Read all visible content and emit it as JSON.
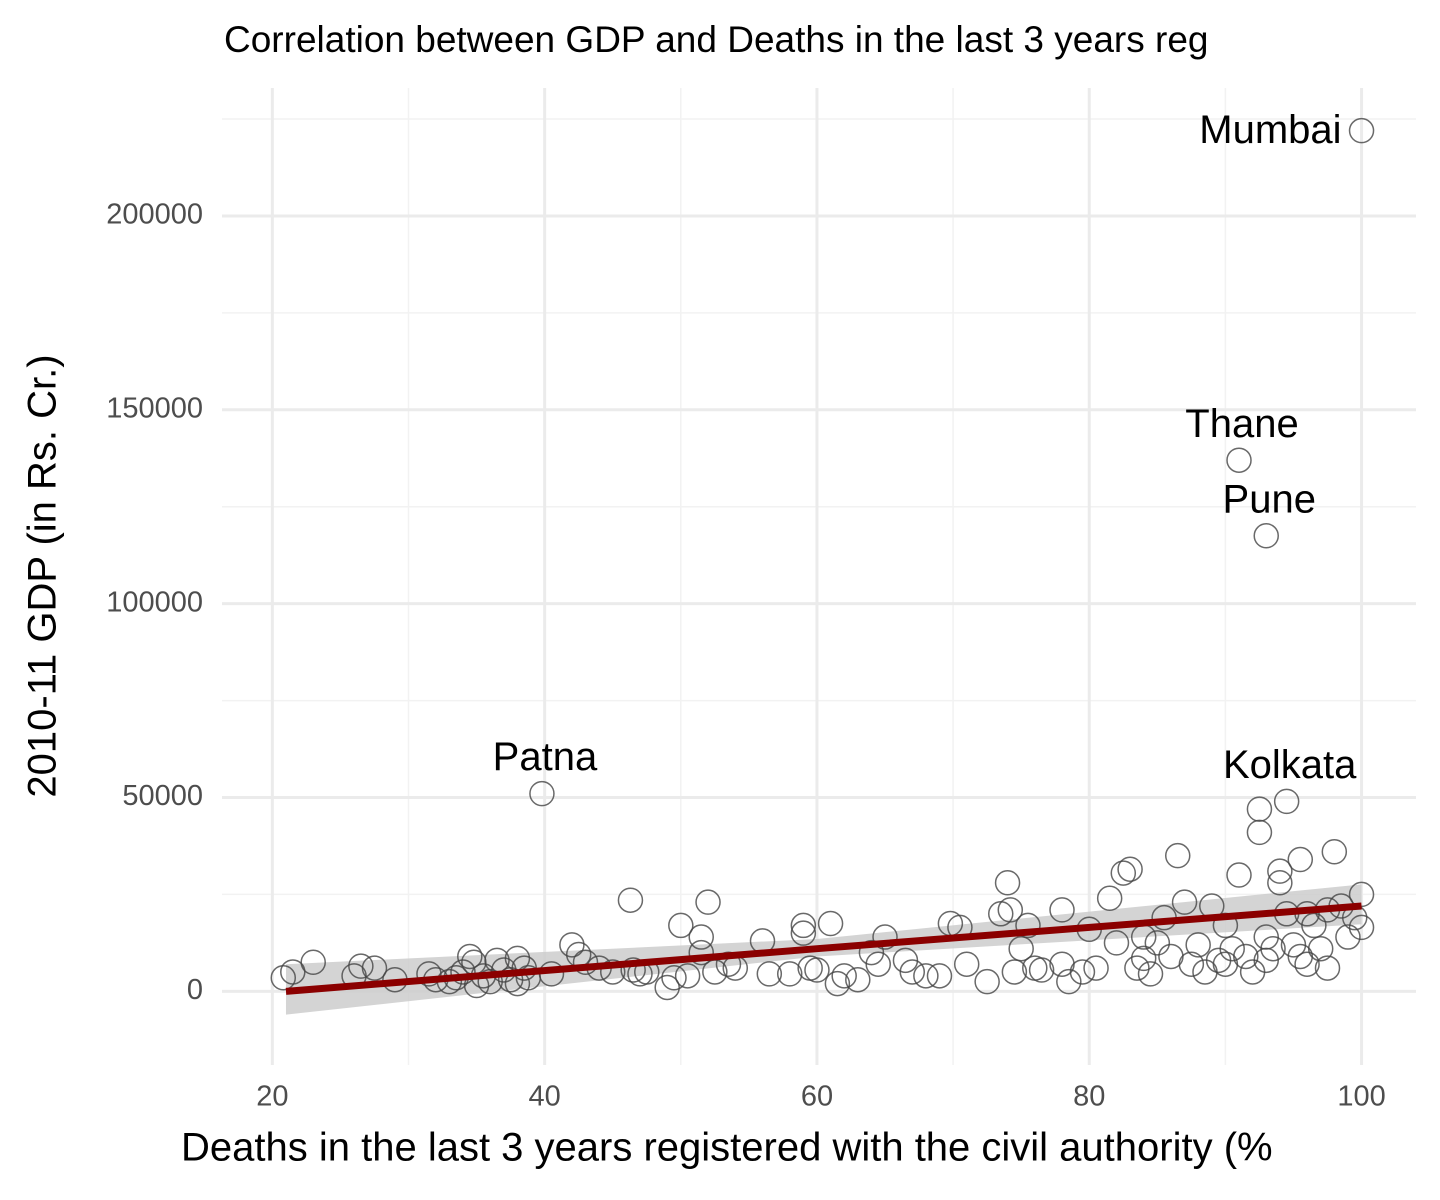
{
  "chart_data": {
    "type": "scatter",
    "title": "Correlation between GDP and Deaths in the last 3 years reg",
    "x_label": "Deaths in the last 3 years registered with the civil authority (%",
    "y_label": "2010-11 GDP (in Rs. Cr.)",
    "xlim": [
      16.3,
      104
    ],
    "ylim": [
      -19000,
      233000
    ],
    "xticks": [
      20,
      40,
      60,
      80,
      100
    ],
    "yticks": [
      0,
      50000,
      100000,
      150000,
      200000
    ],
    "x_minor_ticks": [
      30,
      50,
      70,
      90
    ],
    "y_minor_ticks": [
      25000,
      75000,
      125000,
      175000,
      225000
    ],
    "grid": true,
    "point_color": "#444444",
    "x": [
      20.8,
      21.5,
      23,
      26,
      26.5,
      27.5,
      29,
      31.5,
      32,
      33,
      33.5,
      34,
      34.5,
      34.8,
      35,
      35.5,
      36,
      36.5,
      37,
      37.5,
      38,
      38.5,
      38.8,
      38,
      40.5,
      42,
      42.5,
      43,
      44,
      45,
      46.3,
      46.5,
      47,
      47.5,
      49,
      49.5,
      50,
      50.5,
      51.5,
      51.5,
      52,
      52.5,
      53.5,
      54,
      56,
      56.5,
      58,
      59,
      59,
      59.5,
      60,
      61,
      61.5,
      62,
      63,
      64,
      64.5,
      65,
      66.5,
      67,
      68,
      69,
      69.8,
      70.5,
      71,
      72.5,
      73.5,
      74,
      74.2,
      74.5,
      75,
      75.5,
      76,
      76.5,
      78,
      78,
      78.5,
      79.5,
      80,
      80.5,
      81.5,
      82,
      82.5,
      83,
      83.5,
      84,
      84.5,
      84,
      85,
      85.5,
      86,
      86.5,
      87,
      87.5,
      88,
      88.5,
      89,
      89.5,
      90,
      90,
      90.5,
      91,
      91.5,
      92,
      92.5,
      92.5,
      93,
      93,
      93.5,
      94,
      94,
      94.5,
      94.5,
      95,
      95.5,
      95.5,
      96,
      96,
      96.5,
      97,
      97.5,
      97.5,
      98,
      98.5,
      99,
      99.5,
      100,
      100,
      100,
      91,
      93,
      39.8
    ],
    "y": [
      3500,
      5000,
      7500,
      4000,
      6500,
      6000,
      3000,
      4500,
      3000,
      2500,
      3500,
      5000,
      9000,
      7500,
      1500,
      4000,
      2500,
      8000,
      5500,
      3000,
      8500,
      6000,
      3500,
      2000,
      4500,
      12000,
      9500,
      7500,
      6000,
      5000,
      23500,
      5500,
      4500,
      5000,
      1000,
      3500,
      17000,
      4000,
      14000,
      10000,
      23000,
      5000,
      7000,
      6000,
      13000,
      4500,
      4500,
      17000,
      15000,
      6000,
      5500,
      17500,
      2000,
      4000,
      3000,
      10000,
      7000,
      14000,
      8000,
      5000,
      4000,
      4000,
      17500,
      16500,
      7000,
      2500,
      20000,
      28000,
      21000,
      5000,
      11000,
      17000,
      6000,
      5500,
      21000,
      7000,
      2500,
      5000,
      16000,
      6000,
      24000,
      12500,
      30500,
      31500,
      6000,
      8500,
      4500,
      14000,
      12500,
      19000,
      9000,
      35000,
      23000,
      7000,
      12000,
      5000,
      22000,
      8000,
      17000,
      7000,
      11000,
      30000,
      9000,
      5000,
      47000,
      41000,
      14000,
      8000,
      11000,
      31000,
      28000,
      49000,
      20000,
      12000,
      9000,
      34000,
      20000,
      7000,
      17000,
      11000,
      6000,
      21000,
      36000,
      22000,
      14000,
      19000,
      25000,
      16500,
      222000,
      137000,
      117500,
      51000
    ],
    "trend": {
      "color": "#8b0000",
      "band_color": "#cccccc",
      "x": [
        21,
        60,
        100
      ],
      "y": [
        0,
        11000,
        22000
      ],
      "lower": [
        -6000,
        9000,
        17300
      ],
      "upper": [
        7000,
        13500,
        27600
      ]
    },
    "annotations": [
      {
        "text": "Mumbai",
        "x": 100,
        "y": 222000
      },
      {
        "text": "Thane",
        "x": 91,
        "y": 137000
      },
      {
        "text": "Pune",
        "x": 93,
        "y": 117500
      },
      {
        "text": "Patna",
        "x": 39.8,
        "y": 51000
      },
      {
        "text": "Kolkata",
        "x": 94.5,
        "y": 49000
      }
    ]
  }
}
